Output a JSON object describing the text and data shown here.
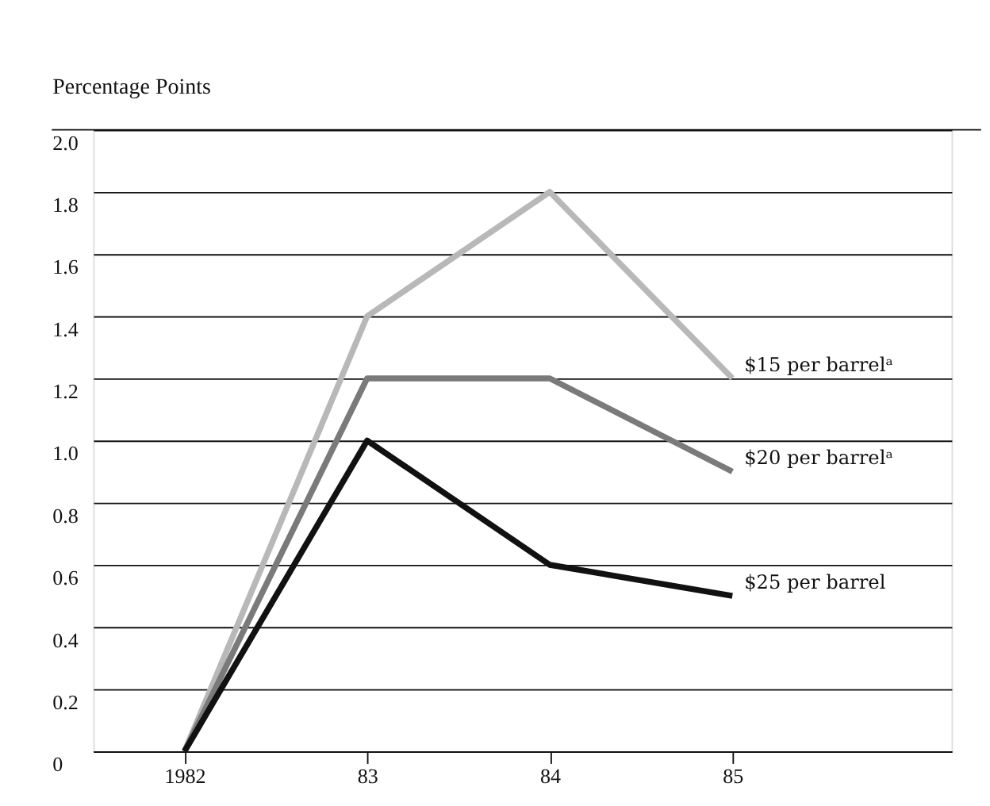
{
  "chart_data": {
    "type": "line",
    "ylabel": "Percentage Points",
    "x": [
      1982,
      1983,
      1984,
      1985
    ],
    "xlim": [
      1981.5,
      1986.2
    ],
    "xticks": [
      {
        "value": 1982,
        "label": "1982"
      },
      {
        "value": 1983,
        "label": "83"
      },
      {
        "value": 1984,
        "label": "84"
      },
      {
        "value": 1985,
        "label": "85"
      }
    ],
    "ylim": [
      0,
      2.0
    ],
    "yticks": [
      {
        "value": 0,
        "label": "0"
      },
      {
        "value": 0.2,
        "label": "0.2"
      },
      {
        "value": 0.4,
        "label": "0.4"
      },
      {
        "value": 0.6,
        "label": "0.6"
      },
      {
        "value": 0.8,
        "label": "0.8"
      },
      {
        "value": 1.0,
        "label": "1.0"
      },
      {
        "value": 1.2,
        "label": "1.2"
      },
      {
        "value": 1.4,
        "label": "1.4"
      },
      {
        "value": 1.6,
        "label": "1.6"
      },
      {
        "value": 1.8,
        "label": "1.8"
      },
      {
        "value": 2.0,
        "label": "2.0"
      }
    ],
    "grid": "y",
    "legend": false,
    "marker": "none",
    "line_style": "solid",
    "series": [
      {
        "name": "$15 per barrelᵃ",
        "color": "#b8b8b8",
        "values": [
          0,
          1.4,
          1.8,
          1.2
        ]
      },
      {
        "name": "$20 per barrelᵃ",
        "color": "#7a7a7a",
        "values": [
          0,
          1.2,
          1.2,
          0.9
        ]
      },
      {
        "name": "$25 per barrel",
        "color": "#111111",
        "values": [
          0,
          1.0,
          0.6,
          0.5
        ]
      }
    ]
  }
}
